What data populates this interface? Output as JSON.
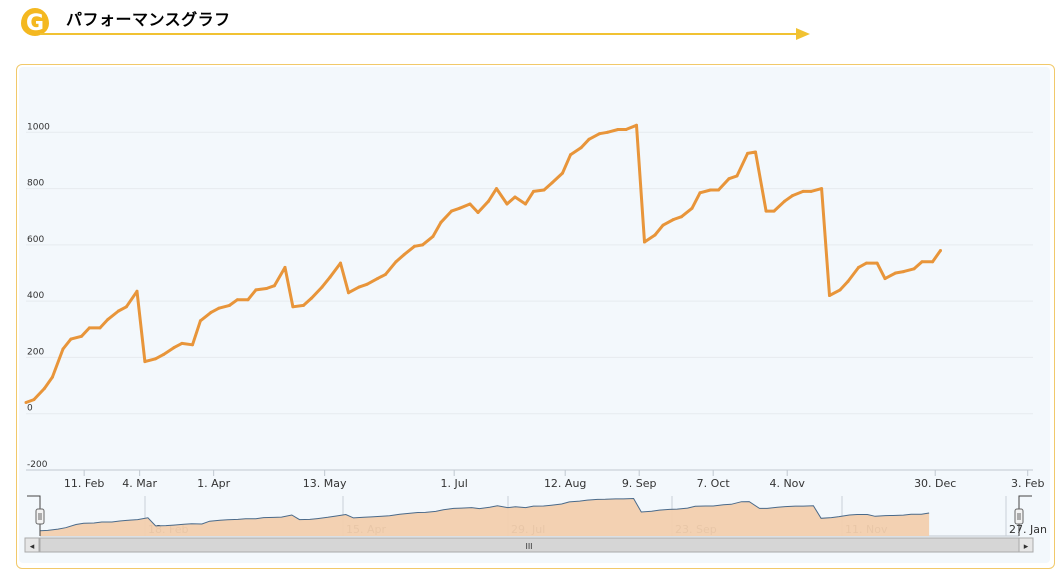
{
  "header": {
    "logo_letter": "G",
    "title": "パフォーマンスグラフ"
  },
  "colors": {
    "line": "#e8953a",
    "navigator_fill": "#f2cfae",
    "navigator_line": "#4a6a8a",
    "accent": "#f4b820",
    "arrow": "#f1c232",
    "plot_bg": "#f3f8fc",
    "panel_border": "#f1c96a"
  },
  "chart_data": {
    "type": "line",
    "title": "",
    "xlabel": "",
    "ylabel": "",
    "ylim": [
      -200,
      1200
    ],
    "yticks": [
      {
        "value": 1000,
        "label": "1000"
      },
      {
        "value": 800,
        "label": "800"
      },
      {
        "value": 600,
        "label": "600"
      },
      {
        "value": 400,
        "label": "400"
      },
      {
        "value": 200,
        "label": "200"
      },
      {
        "value": 0,
        "label": "0"
      },
      {
        "value": -200,
        "label": "-200"
      }
    ],
    "xlim": [
      "2014-01-20",
      "2015-02-05"
    ],
    "xticks": [
      {
        "date": "2014-02-11",
        "label": "11. Feb"
      },
      {
        "date": "2014-03-04",
        "label": "4. Mar"
      },
      {
        "date": "2014-04-01",
        "label": "1. Apr"
      },
      {
        "date": "2014-05-13",
        "label": "13. May"
      },
      {
        "date": "2014-07-01",
        "label": "1. Jul"
      },
      {
        "date": "2014-08-12",
        "label": "12. Aug"
      },
      {
        "date": "2014-09-09",
        "label": "9. Sep"
      },
      {
        "date": "2014-10-07",
        "label": "7. Oct"
      },
      {
        "date": "2014-11-04",
        "label": "4. Nov"
      },
      {
        "date": "2014-12-30",
        "label": "30. Dec"
      },
      {
        "date": "2015-02-03",
        "label": "3. Feb"
      }
    ],
    "series": [
      {
        "values": [
          [
            "2014-01-20",
            40
          ],
          [
            "2014-01-23",
            50
          ],
          [
            "2014-01-27",
            90
          ],
          [
            "2014-01-30",
            130
          ],
          [
            "2014-02-03",
            230
          ],
          [
            "2014-02-06",
            265
          ],
          [
            "2014-02-10",
            275
          ],
          [
            "2014-02-13",
            305
          ],
          [
            "2014-02-17",
            305
          ],
          [
            "2014-02-20",
            335
          ],
          [
            "2014-02-24",
            365
          ],
          [
            "2014-02-27",
            380
          ],
          [
            "2014-03-03",
            435
          ],
          [
            "2014-03-06",
            185
          ],
          [
            "2014-03-10",
            195
          ],
          [
            "2014-03-13",
            210
          ],
          [
            "2014-03-17",
            235
          ],
          [
            "2014-03-20",
            250
          ],
          [
            "2014-03-24",
            245
          ],
          [
            "2014-03-27",
            330
          ],
          [
            "2014-03-31",
            360
          ],
          [
            "2014-04-03",
            375
          ],
          [
            "2014-04-07",
            385
          ],
          [
            "2014-04-10",
            405
          ],
          [
            "2014-04-14",
            405
          ],
          [
            "2014-04-17",
            440
          ],
          [
            "2014-04-21",
            445
          ],
          [
            "2014-04-24",
            455
          ],
          [
            "2014-04-28",
            520
          ],
          [
            "2014-05-01",
            380
          ],
          [
            "2014-05-05",
            385
          ],
          [
            "2014-05-08",
            410
          ],
          [
            "2014-05-12",
            450
          ],
          [
            "2014-05-15",
            485
          ],
          [
            "2014-05-19",
            535
          ],
          [
            "2014-05-22",
            430
          ],
          [
            "2014-05-26",
            450
          ],
          [
            "2014-05-29",
            460
          ],
          [
            "2014-06-02",
            480
          ],
          [
            "2014-06-05",
            495
          ],
          [
            "2014-06-09",
            540
          ],
          [
            "2014-06-12",
            565
          ],
          [
            "2014-06-16",
            595
          ],
          [
            "2014-06-19",
            600
          ],
          [
            "2014-06-23",
            630
          ],
          [
            "2014-06-26",
            680
          ],
          [
            "2014-06-30",
            720
          ],
          [
            "2014-07-03",
            730
          ],
          [
            "2014-07-07",
            745
          ],
          [
            "2014-07-10",
            715
          ],
          [
            "2014-07-14",
            755
          ],
          [
            "2014-07-17",
            800
          ],
          [
            "2014-07-21",
            745
          ],
          [
            "2014-07-24",
            770
          ],
          [
            "2014-07-28",
            745
          ],
          [
            "2014-07-31",
            790
          ],
          [
            "2014-08-04",
            795
          ],
          [
            "2014-08-07",
            820
          ],
          [
            "2014-08-11",
            855
          ],
          [
            "2014-08-14",
            920
          ],
          [
            "2014-08-18",
            945
          ],
          [
            "2014-08-21",
            975
          ],
          [
            "2014-08-25",
            995
          ],
          [
            "2014-08-28",
            1000
          ],
          [
            "2014-09-01",
            1010
          ],
          [
            "2014-09-04",
            1010
          ],
          [
            "2014-09-08",
            1025
          ],
          [
            "2014-09-11",
            610
          ],
          [
            "2014-09-15",
            635
          ],
          [
            "2014-09-18",
            670
          ],
          [
            "2014-09-22",
            690
          ],
          [
            "2014-09-25",
            700
          ],
          [
            "2014-09-29",
            730
          ],
          [
            "2014-10-02",
            785
          ],
          [
            "2014-10-06",
            795
          ],
          [
            "2014-10-09",
            795
          ],
          [
            "2014-10-13",
            835
          ],
          [
            "2014-10-16",
            845
          ],
          [
            "2014-10-20",
            925
          ],
          [
            "2014-10-23",
            930
          ],
          [
            "2014-10-27",
            720
          ],
          [
            "2014-10-30",
            720
          ],
          [
            "2014-11-03",
            755
          ],
          [
            "2014-11-06",
            775
          ],
          [
            "2014-11-10",
            790
          ],
          [
            "2014-11-13",
            790
          ],
          [
            "2014-11-17",
            800
          ],
          [
            "2014-11-20",
            420
          ],
          [
            "2014-11-24",
            440
          ],
          [
            "2014-11-27",
            470
          ],
          [
            "2014-12-01",
            520
          ],
          [
            "2014-12-04",
            535
          ],
          [
            "2014-12-08",
            535
          ],
          [
            "2014-12-11",
            480
          ],
          [
            "2014-12-15",
            500
          ],
          [
            "2014-12-18",
            505
          ],
          [
            "2014-12-22",
            515
          ],
          [
            "2014-12-25",
            540
          ],
          [
            "2014-12-29",
            540
          ],
          [
            "2015-01-01",
            580
          ]
        ]
      }
    ],
    "navigator": {
      "labels": [
        "18. Feb",
        "15. Apr",
        "29. Jul",
        "23. Sep",
        "11. Nov",
        "27. Jan"
      ]
    },
    "scrollbar": {
      "left_arrow": "◂",
      "right_arrow": "▸",
      "grip": "III"
    },
    "grid": true,
    "legend": "none"
  }
}
